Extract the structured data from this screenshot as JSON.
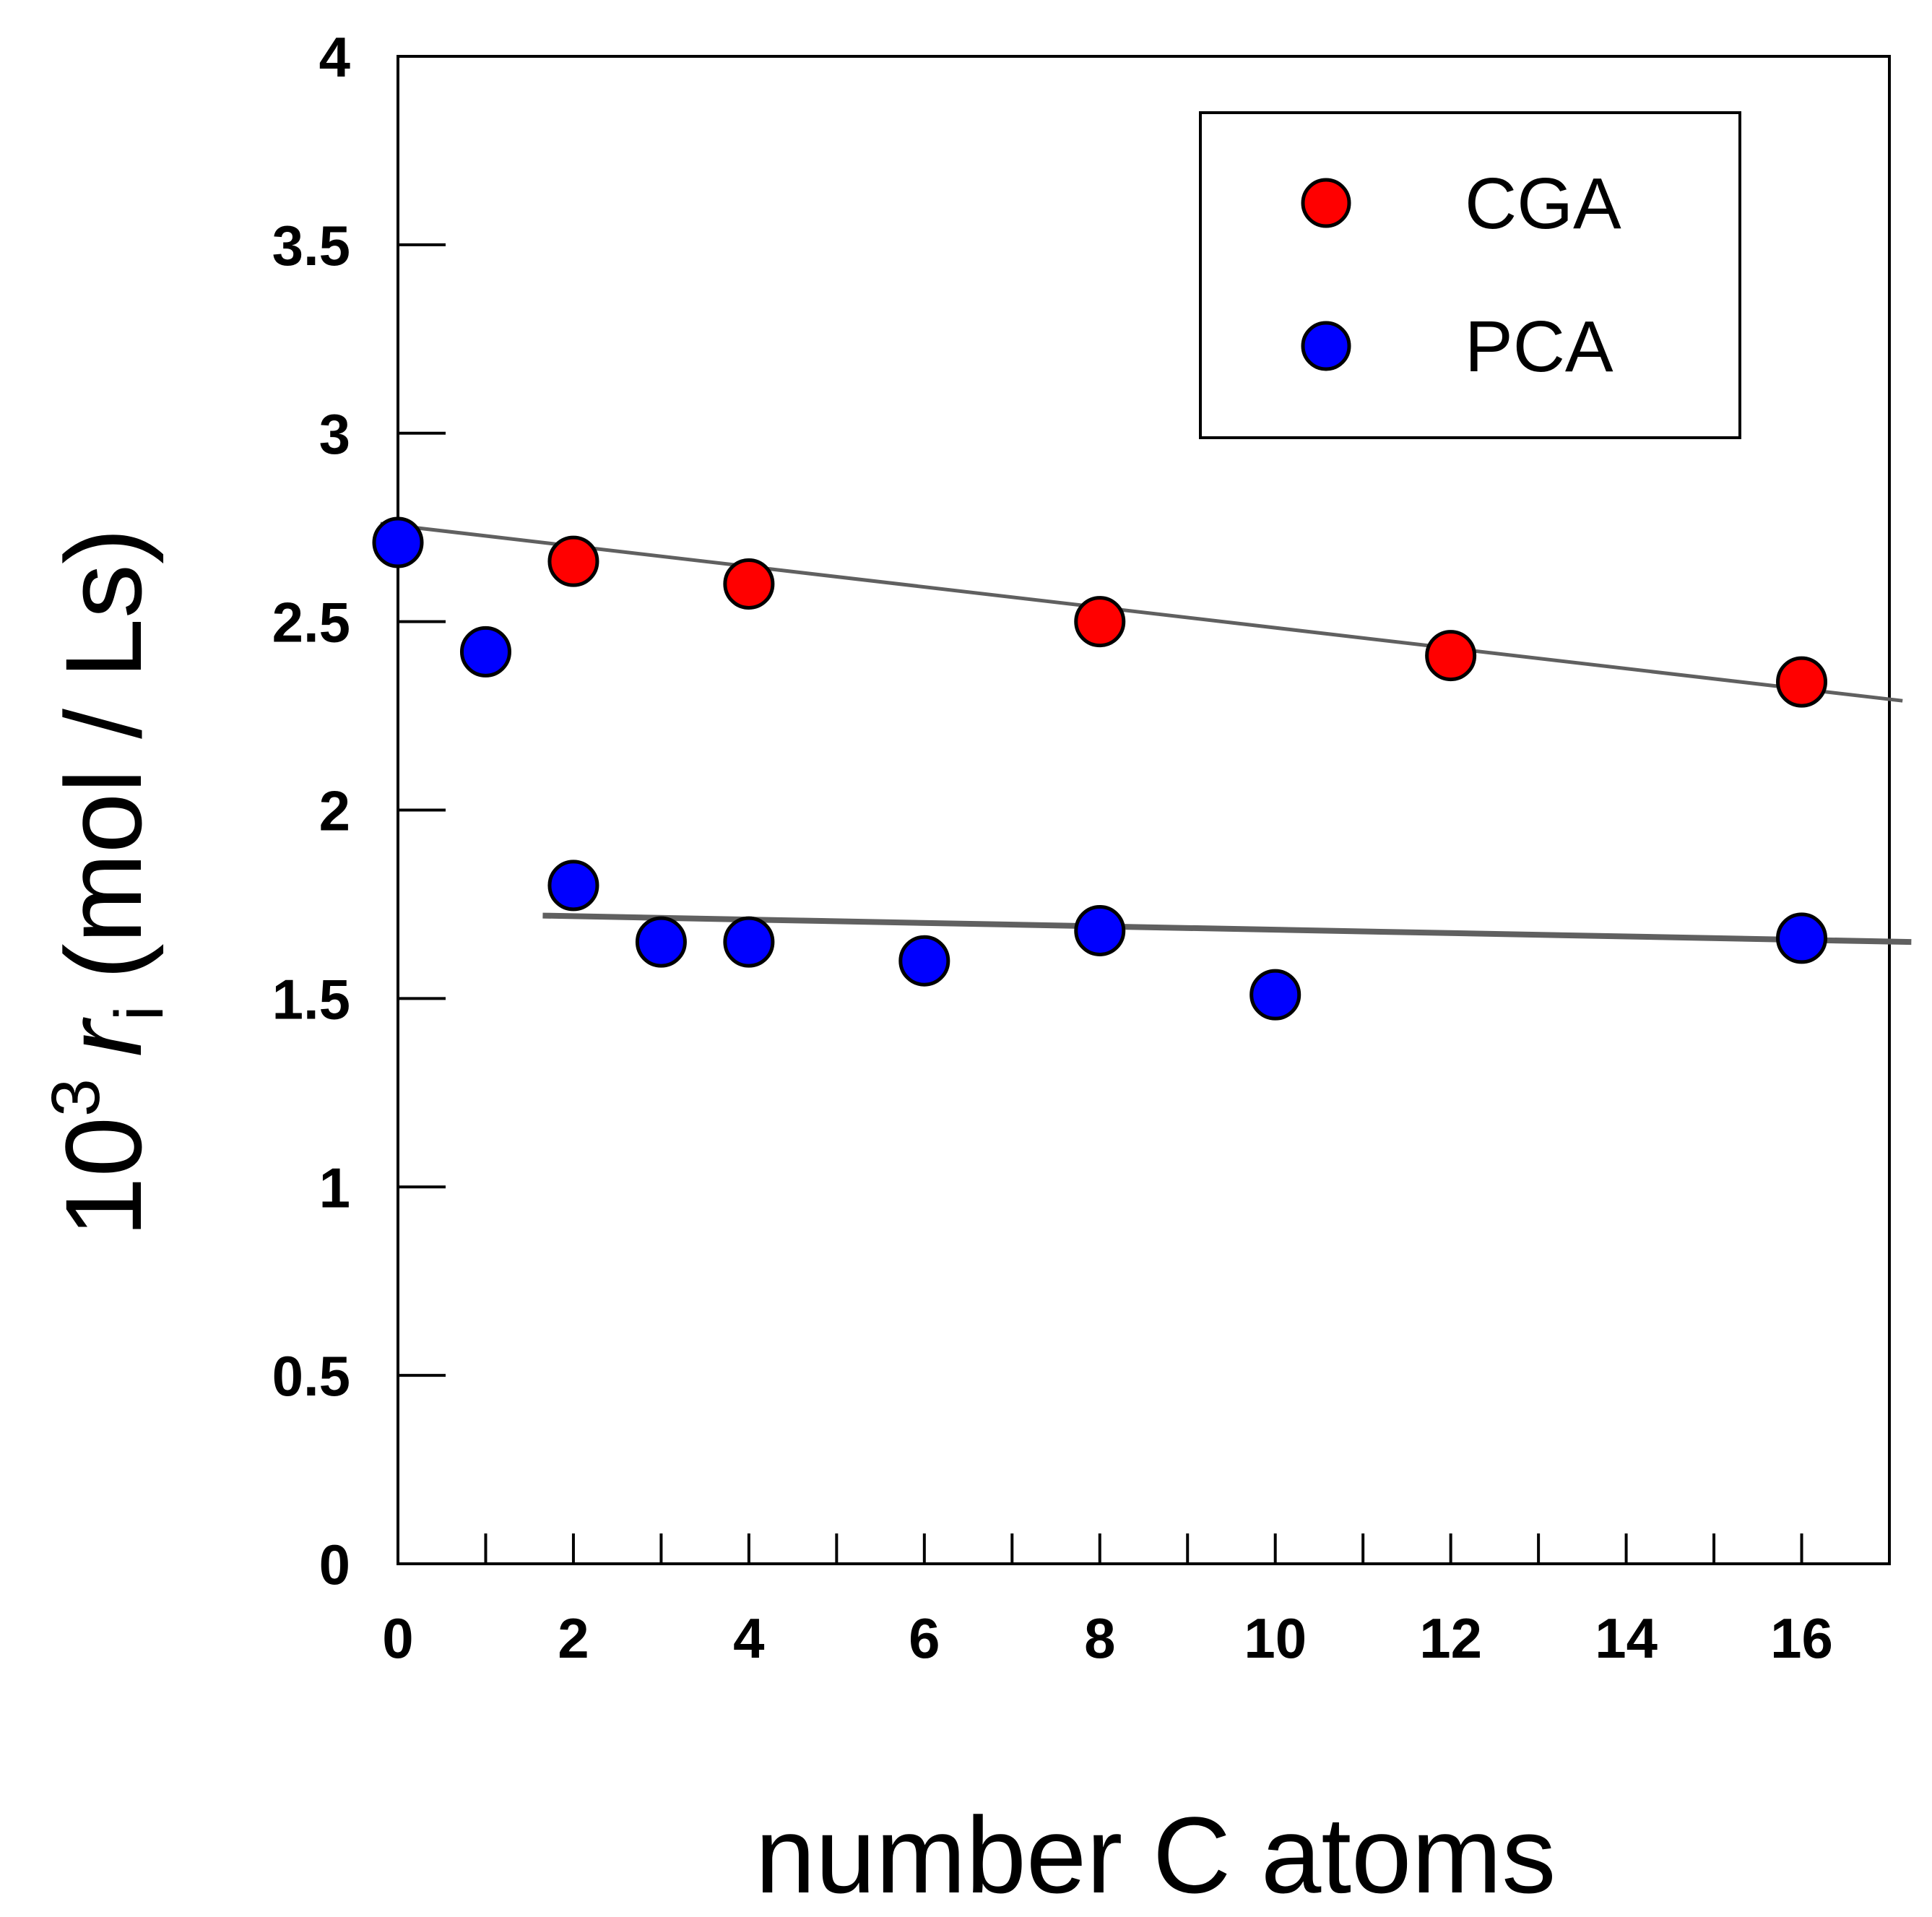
{
  "chart_data": {
    "type": "scatter",
    "title": "",
    "xlabel": "number C atoms",
    "ylabel": {
      "prefix": "10",
      "exponent": "3",
      "symbol": "r",
      "subscript": "i",
      "units": "(mol / Ls)"
    },
    "xlim": [
      0,
      17
    ],
    "ylim": [
      0,
      4
    ],
    "x_ticks": [
      "0",
      "2",
      "4",
      "6",
      "8",
      "10",
      "12",
      "14",
      "16"
    ],
    "y_ticks": [
      "0",
      "0.5",
      "1",
      "1.5",
      "2",
      "2.5",
      "3",
      "3.5",
      "4"
    ],
    "grid": false,
    "legend": {
      "position": "top-right"
    },
    "series": [
      {
        "name": "CGA",
        "color": "#ff0000",
        "x": [
          2,
          4,
          8,
          12,
          16
        ],
        "y": [
          2.66,
          2.6,
          2.5,
          2.41,
          2.34
        ]
      },
      {
        "name": "PCA",
        "color": "#0000ff",
        "x": [
          0,
          1,
          2,
          3,
          4,
          6,
          8,
          10,
          16
        ],
        "y": [
          2.71,
          2.42,
          1.8,
          1.65,
          1.65,
          1.6,
          1.68,
          1.51,
          1.66
        ]
      }
    ],
    "trend_lines": [
      {
        "series": "CGA",
        "x": [
          -0.2,
          17.15
        ],
        "y": [
          2.76,
          2.29
        ],
        "color": "#606060"
      },
      {
        "series": "PCA",
        "x": [
          1.65,
          17.25
        ],
        "y": [
          1.72,
          1.65
        ],
        "color": "#606060"
      }
    ]
  }
}
